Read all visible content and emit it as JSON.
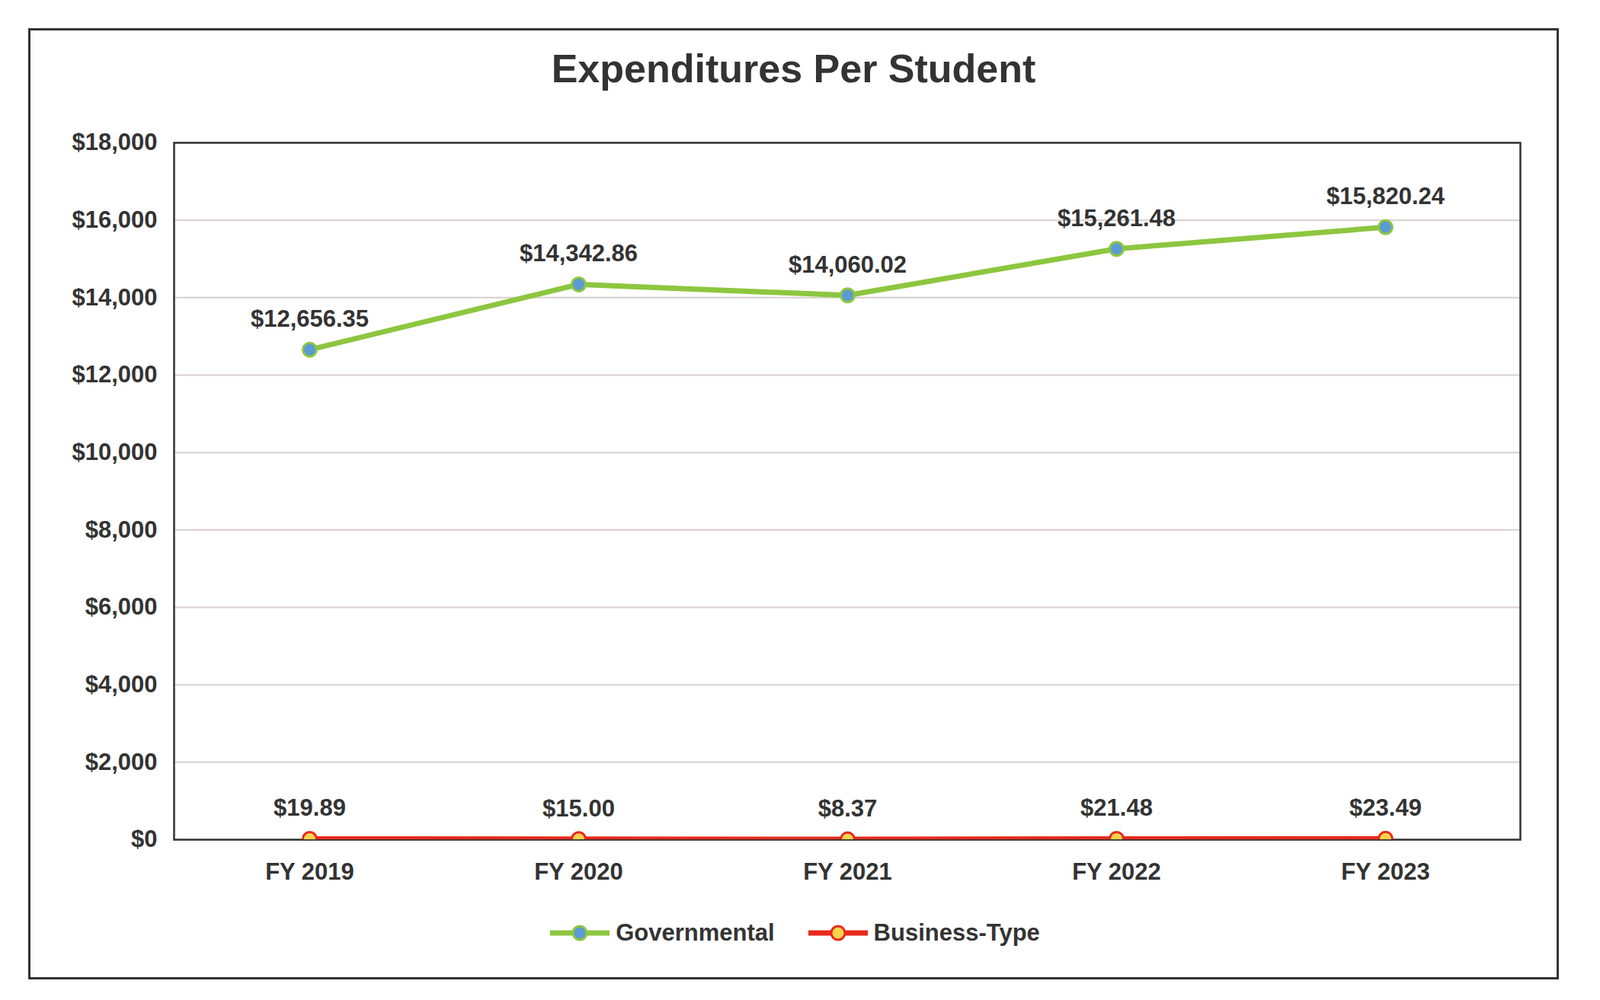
{
  "chart_data": {
    "type": "line",
    "title": "Expenditures Per Student",
    "categories": [
      "FY 2019",
      "FY 2020",
      "FY 2021",
      "FY 2022",
      "FY 2023"
    ],
    "series": [
      {
        "name": "Governmental",
        "color": "#8dc63f",
        "marker": "circle",
        "values": [
          12656.35,
          14342.86,
          14060.02,
          15261.48,
          15820.24
        ],
        "value_labels": [
          "$12,656.35",
          "$14,342.86",
          "$14,060.02",
          "$15,261.48",
          "$15,820.24"
        ]
      },
      {
        "name": "Business-Type",
        "color": "#e8291c",
        "marker": "circle",
        "values": [
          19.89,
          15.0,
          8.37,
          21.48,
          23.49
        ],
        "value_labels": [
          "$19.89",
          "$15.00",
          "$8.37",
          "$21.48",
          "$23.49"
        ]
      }
    ],
    "ylim": [
      0,
      18000
    ],
    "yticks": [
      {
        "value": 0,
        "label": "$0"
      },
      {
        "value": 2000,
        "label": "$2,000"
      },
      {
        "value": 4000,
        "label": "$4,000"
      },
      {
        "value": 6000,
        "label": "$6,000"
      },
      {
        "value": 8000,
        "label": "$8,000"
      },
      {
        "value": 10000,
        "label": "$10,000"
      },
      {
        "value": 12000,
        "label": "$12,000"
      },
      {
        "value": 14000,
        "label": "$14,000"
      },
      {
        "value": 16000,
        "label": "$16,000"
      },
      {
        "value": 18000,
        "label": "$18,000"
      }
    ],
    "grid": true,
    "data_labels": true,
    "legend": "bottom"
  }
}
